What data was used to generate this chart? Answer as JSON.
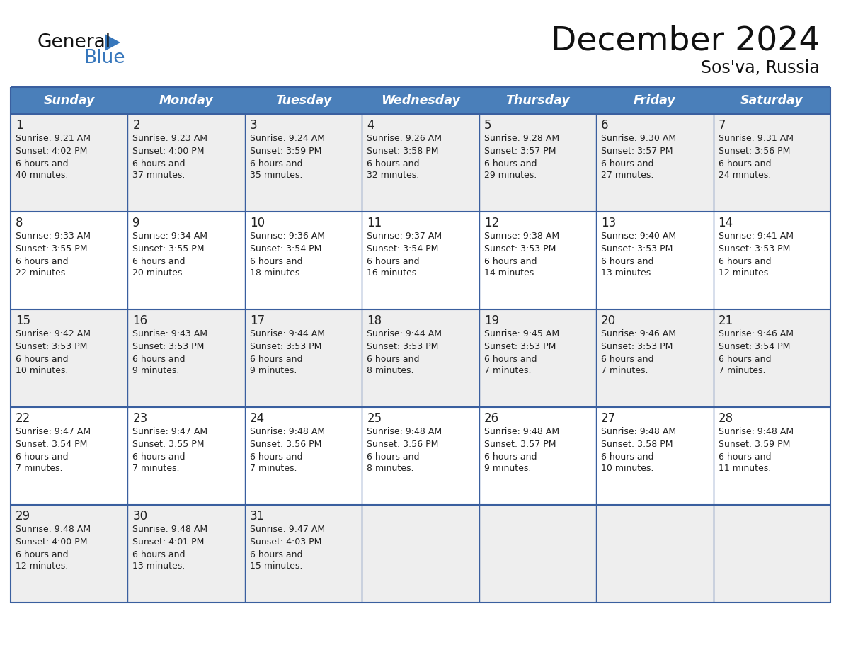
{
  "title": "December 2024",
  "subtitle": "Sos'va, Russia",
  "header_color": "#4a7fba",
  "header_text_color": "#FFFFFF",
  "day_headers": [
    "Sunday",
    "Monday",
    "Tuesday",
    "Wednesday",
    "Thursday",
    "Friday",
    "Saturday"
  ],
  "bg_color": "#FFFFFF",
  "cell_bg_row0": "#eeeeee",
  "cell_bg_row1": "#ffffff",
  "cell_bg_row2": "#eeeeee",
  "cell_bg_row3": "#ffffff",
  "cell_bg_row4": "#eeeeee",
  "grid_color": "#3a5f9f",
  "text_color": "#222222",
  "title_color": "#111111",
  "subtitle_color": "#111111",
  "logo_general_color": "#111111",
  "logo_blue_color": "#3777BC",
  "logo_triangle_color": "#3777BC",
  "calendar_data": [
    [
      {
        "day": 1,
        "sunrise": "9:21 AM",
        "sunset": "4:02 PM",
        "daylight": "6 hours and 40 minutes."
      },
      {
        "day": 2,
        "sunrise": "9:23 AM",
        "sunset": "4:00 PM",
        "daylight": "6 hours and 37 minutes."
      },
      {
        "day": 3,
        "sunrise": "9:24 AM",
        "sunset": "3:59 PM",
        "daylight": "6 hours and 35 minutes."
      },
      {
        "day": 4,
        "sunrise": "9:26 AM",
        "sunset": "3:58 PM",
        "daylight": "6 hours and 32 minutes."
      },
      {
        "day": 5,
        "sunrise": "9:28 AM",
        "sunset": "3:57 PM",
        "daylight": "6 hours and 29 minutes."
      },
      {
        "day": 6,
        "sunrise": "9:30 AM",
        "sunset": "3:57 PM",
        "daylight": "6 hours and 27 minutes."
      },
      {
        "day": 7,
        "sunrise": "9:31 AM",
        "sunset": "3:56 PM",
        "daylight": "6 hours and 24 minutes."
      }
    ],
    [
      {
        "day": 8,
        "sunrise": "9:33 AM",
        "sunset": "3:55 PM",
        "daylight": "6 hours and 22 minutes."
      },
      {
        "day": 9,
        "sunrise": "9:34 AM",
        "sunset": "3:55 PM",
        "daylight": "6 hours and 20 minutes."
      },
      {
        "day": 10,
        "sunrise": "9:36 AM",
        "sunset": "3:54 PM",
        "daylight": "6 hours and 18 minutes."
      },
      {
        "day": 11,
        "sunrise": "9:37 AM",
        "sunset": "3:54 PM",
        "daylight": "6 hours and 16 minutes."
      },
      {
        "day": 12,
        "sunrise": "9:38 AM",
        "sunset": "3:53 PM",
        "daylight": "6 hours and 14 minutes."
      },
      {
        "day": 13,
        "sunrise": "9:40 AM",
        "sunset": "3:53 PM",
        "daylight": "6 hours and 13 minutes."
      },
      {
        "day": 14,
        "sunrise": "9:41 AM",
        "sunset": "3:53 PM",
        "daylight": "6 hours and 12 minutes."
      }
    ],
    [
      {
        "day": 15,
        "sunrise": "9:42 AM",
        "sunset": "3:53 PM",
        "daylight": "6 hours and 10 minutes."
      },
      {
        "day": 16,
        "sunrise": "9:43 AM",
        "sunset": "3:53 PM",
        "daylight": "6 hours and 9 minutes."
      },
      {
        "day": 17,
        "sunrise": "9:44 AM",
        "sunset": "3:53 PM",
        "daylight": "6 hours and 9 minutes."
      },
      {
        "day": 18,
        "sunrise": "9:44 AM",
        "sunset": "3:53 PM",
        "daylight": "6 hours and 8 minutes."
      },
      {
        "day": 19,
        "sunrise": "9:45 AM",
        "sunset": "3:53 PM",
        "daylight": "6 hours and 7 minutes."
      },
      {
        "day": 20,
        "sunrise": "9:46 AM",
        "sunset": "3:53 PM",
        "daylight": "6 hours and 7 minutes."
      },
      {
        "day": 21,
        "sunrise": "9:46 AM",
        "sunset": "3:54 PM",
        "daylight": "6 hours and 7 minutes."
      }
    ],
    [
      {
        "day": 22,
        "sunrise": "9:47 AM",
        "sunset": "3:54 PM",
        "daylight": "6 hours and 7 minutes."
      },
      {
        "day": 23,
        "sunrise": "9:47 AM",
        "sunset": "3:55 PM",
        "daylight": "6 hours and 7 minutes."
      },
      {
        "day": 24,
        "sunrise": "9:48 AM",
        "sunset": "3:56 PM",
        "daylight": "6 hours and 7 minutes."
      },
      {
        "day": 25,
        "sunrise": "9:48 AM",
        "sunset": "3:56 PM",
        "daylight": "6 hours and 8 minutes."
      },
      {
        "day": 26,
        "sunrise": "9:48 AM",
        "sunset": "3:57 PM",
        "daylight": "6 hours and 9 minutes."
      },
      {
        "day": 27,
        "sunrise": "9:48 AM",
        "sunset": "3:58 PM",
        "daylight": "6 hours and 10 minutes."
      },
      {
        "day": 28,
        "sunrise": "9:48 AM",
        "sunset": "3:59 PM",
        "daylight": "6 hours and 11 minutes."
      }
    ],
    [
      {
        "day": 29,
        "sunrise": "9:48 AM",
        "sunset": "4:00 PM",
        "daylight": "6 hours and 12 minutes."
      },
      {
        "day": 30,
        "sunrise": "9:48 AM",
        "sunset": "4:01 PM",
        "daylight": "6 hours and 13 minutes."
      },
      {
        "day": 31,
        "sunrise": "9:47 AM",
        "sunset": "4:03 PM",
        "daylight": "6 hours and 15 minutes."
      },
      null,
      null,
      null,
      null
    ]
  ]
}
